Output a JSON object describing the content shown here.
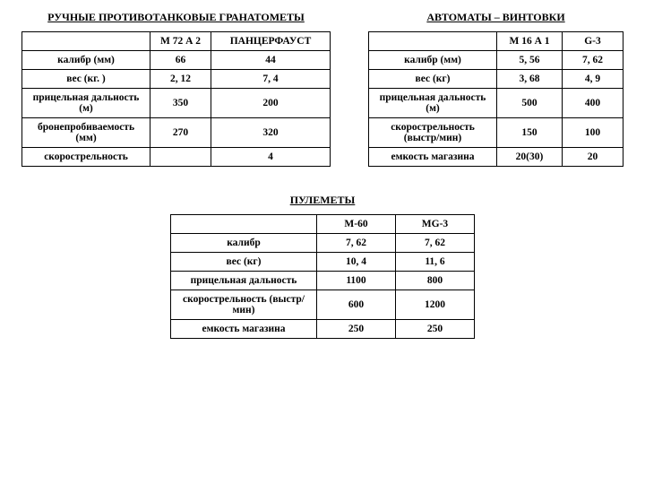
{
  "section1": {
    "title": "РУЧНЫЕ ПРОТИВОТАНКОВЫЕ ГРАНАТОМЕТЫ",
    "columns": [
      "",
      "М 72 А 2",
      "ПАНЦЕРФАУСТ"
    ],
    "rows": [
      [
        "калибр (мм)",
        "66",
        "44"
      ],
      [
        "вес (кг. )",
        "2, 12",
        "7, 4"
      ],
      [
        "прицельная дальность (м)",
        "350",
        "200"
      ],
      [
        "бронепробиваемость (мм)",
        "270",
        "320"
      ],
      [
        "скорострельность",
        "",
        "4"
      ]
    ]
  },
  "section2": {
    "title": "АВТОМАТЫ – ВИНТОВКИ",
    "columns": [
      "",
      "М 16 А 1",
      "G-3"
    ],
    "rows": [
      [
        "калибр (мм)",
        "5, 56",
        "7, 62"
      ],
      [
        "вес (кг)",
        "3, 68",
        "4, 9"
      ],
      [
        "прицельная дальность (м)",
        "500",
        "400"
      ],
      [
        "скорострельность (выстр/мин)",
        "150",
        "100"
      ],
      [
        "емкость магазина",
        "20(30)",
        "20"
      ]
    ]
  },
  "section3": {
    "title": "ПУЛЕМЕТЫ",
    "columns": [
      "",
      "М-60",
      "МG-3"
    ],
    "rows": [
      [
        "калибр",
        "7, 62",
        "7, 62"
      ],
      [
        "вес (кг)",
        "10, 4",
        "11, 6"
      ],
      [
        "прицельная дальность",
        "1100",
        "800"
      ],
      [
        "скорострельность (выстр/мин)",
        "600",
        "1200"
      ],
      [
        "емкость магазина",
        "250",
        "250"
      ]
    ]
  }
}
